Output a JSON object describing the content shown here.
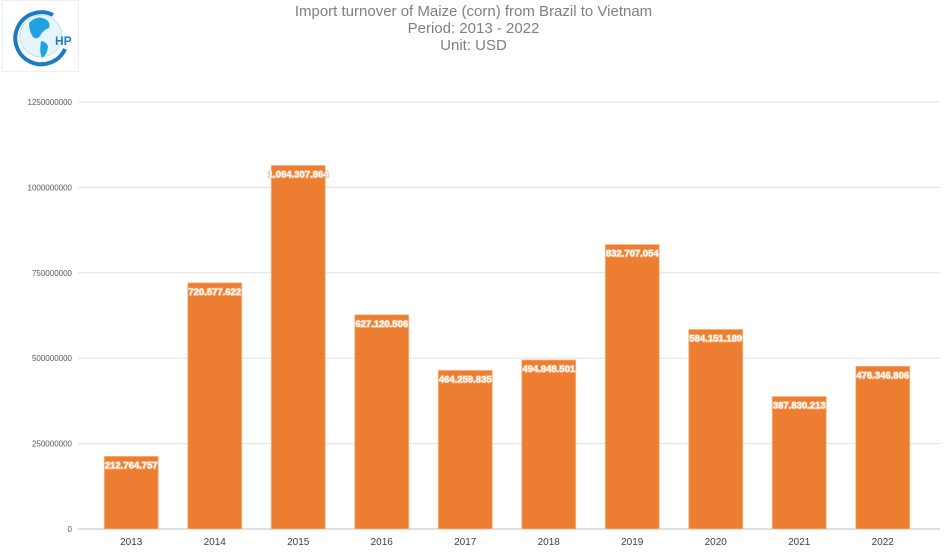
{
  "chart_data": {
    "type": "bar",
    "title": "Import turnover of Maize (corn) from Brazil to Vietnam",
    "subtitle": "Period: 2013 - 2022",
    "unit": "Unit: USD",
    "categories": [
      "2013",
      "2014",
      "2015",
      "2016",
      "2017",
      "2018",
      "2019",
      "2020",
      "2021",
      "2022"
    ],
    "values": [
      212764757,
      720577622,
      1064307864,
      627120506,
      464259835,
      494848501,
      832707054,
      584151189,
      387830213,
      476346806
    ],
    "data_labels": [
      "212.764.757",
      "720.577.622",
      "1.064.307.864",
      "627.120.506",
      "464.259.835",
      "494.848.501",
      "832.707.054",
      "584.151.189",
      "387.830.213",
      "476.346.806"
    ],
    "ylim": [
      0,
      1250000000
    ],
    "yticks": [
      "0",
      "250000000",
      "500000000",
      "750000000",
      "1000000000",
      "1250000000"
    ],
    "grid": true,
    "legend": "none",
    "bar_color": "#ED7D31"
  },
  "logo": {
    "text": "HP",
    "color": "#1a9ad6"
  }
}
